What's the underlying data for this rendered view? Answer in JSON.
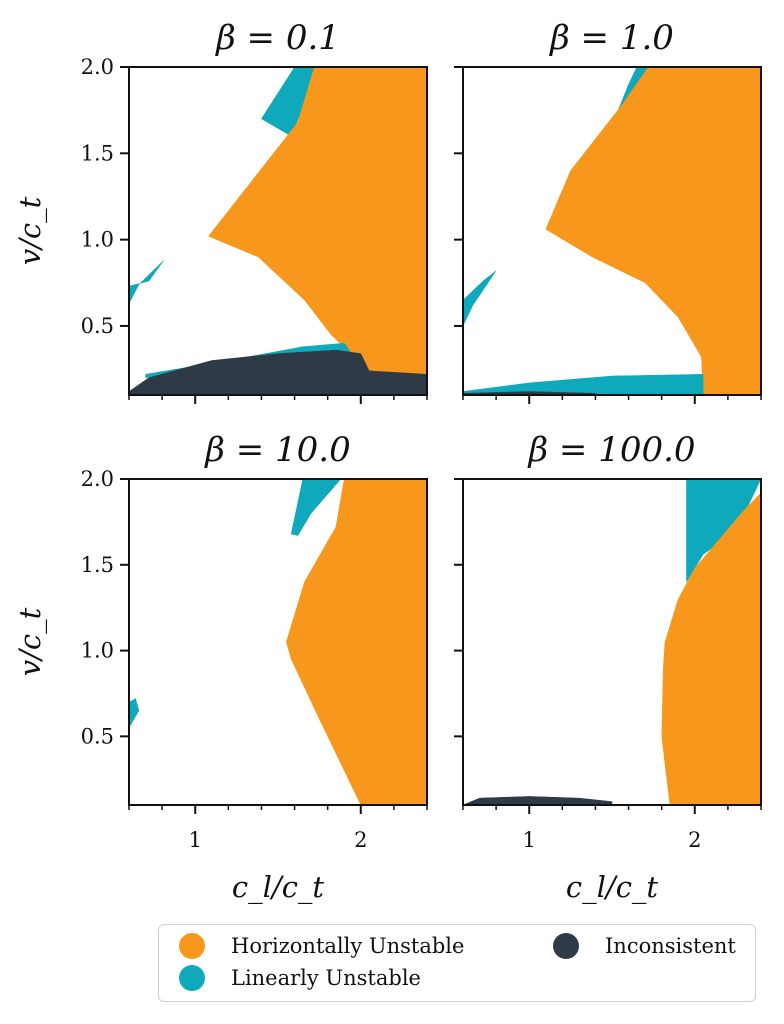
{
  "colors": {
    "horizontally_unstable": "#F7981D",
    "linearly_unstable": "#0EA9BA",
    "inconsistent": "#2E3B46",
    "stable": "#FFFFFF"
  },
  "chart_data": {
    "type": "heatmap",
    "layout": "2x2 grid of region maps",
    "xlabel": "c_l/c_t",
    "ylabel": "v/c_t",
    "xlim": [
      0.6,
      2.4
    ],
    "ylim": [
      0.1,
      2.0
    ],
    "x_ticks": [
      1,
      2
    ],
    "x_tick_labels": [
      "1",
      "2"
    ],
    "y_ticks": [
      0.5,
      1.0,
      1.5,
      2.0
    ],
    "y_tick_labels": [
      "0.5",
      "1.0",
      "1.5",
      "2.0"
    ],
    "legend": {
      "placement": "bottom",
      "entries": [
        {
          "key": "horizontally_unstable",
          "label": "Horizontally Unstable"
        },
        {
          "key": "linearly_unstable",
          "label": "Linearly Unstable"
        },
        {
          "key": "inconsistent",
          "label": "Inconsistent"
        }
      ]
    },
    "panels": [
      {
        "title": "β = 0.1",
        "regions": [
          {
            "category": "linearly_unstable",
            "points": [
              [
                1.4,
                1.7
              ],
              [
                1.6,
                2.0
              ],
              [
                1.75,
                2.0
              ],
              [
                1.58,
                1.6
              ]
            ]
          },
          {
            "category": "horizontally_unstable",
            "points": [
              [
                1.08,
                1.02
              ],
              [
                1.62,
                1.68
              ],
              [
                1.72,
                2.0
              ],
              [
                2.4,
                2.0
              ],
              [
                2.4,
                0.21
              ],
              [
                2.1,
                0.24
              ],
              [
                1.98,
                0.24
              ],
              [
                1.95,
                0.33
              ],
              [
                1.82,
                0.45
              ],
              [
                1.66,
                0.65
              ],
              [
                1.38,
                0.9
              ]
            ]
          },
          {
            "category": "linearly_unstable",
            "points": [
              [
                0.6,
                0.63
              ],
              [
                0.66,
                0.74
              ],
              [
                0.81,
                0.88
              ],
              [
                0.72,
                0.76
              ],
              [
                0.6,
                0.73
              ]
            ]
          },
          {
            "category": "linearly_unstable",
            "points": [
              [
                0.7,
                0.22
              ],
              [
                1.2,
                0.3
              ],
              [
                1.65,
                0.38
              ],
              [
                1.9,
                0.4
              ],
              [
                1.96,
                0.32
              ],
              [
                1.55,
                0.32
              ],
              [
                1.1,
                0.24
              ],
              [
                0.7,
                0.2
              ]
            ]
          },
          {
            "category": "inconsistent",
            "points": [
              [
                0.6,
                0.12
              ],
              [
                0.72,
                0.2
              ],
              [
                1.1,
                0.3
              ],
              [
                1.5,
                0.34
              ],
              [
                1.85,
                0.36
              ],
              [
                2.0,
                0.34
              ],
              [
                2.05,
                0.24
              ],
              [
                2.4,
                0.22
              ],
              [
                2.4,
                0.1
              ],
              [
                0.6,
                0.1
              ]
            ]
          }
        ]
      },
      {
        "title": "β = 1.0",
        "regions": [
          {
            "category": "linearly_unstable",
            "points": [
              [
                1.37,
                1.35
              ],
              [
                1.6,
                1.9
              ],
              [
                1.65,
                2.0
              ],
              [
                1.78,
                2.0
              ],
              [
                1.62,
                1.65
              ],
              [
                1.5,
                1.4
              ]
            ]
          },
          {
            "category": "horizontally_unstable",
            "points": [
              [
                1.1,
                1.06
              ],
              [
                1.25,
                1.4
              ],
              [
                1.56,
                1.78
              ],
              [
                1.72,
                2.0
              ],
              [
                2.4,
                2.0
              ],
              [
                2.4,
                0.1
              ],
              [
                2.05,
                0.1
              ],
              [
                2.04,
                0.32
              ],
              [
                1.9,
                0.55
              ],
              [
                1.7,
                0.75
              ],
              [
                1.38,
                0.9
              ]
            ]
          },
          {
            "category": "linearly_unstable",
            "points": [
              [
                0.6,
                0.5
              ],
              [
                0.66,
                0.62
              ],
              [
                0.8,
                0.82
              ],
              [
                0.72,
                0.76
              ],
              [
                0.6,
                0.65
              ]
            ]
          },
          {
            "category": "linearly_unstable",
            "points": [
              [
                0.6,
                0.12
              ],
              [
                1.0,
                0.17
              ],
              [
                1.5,
                0.21
              ],
              [
                2.05,
                0.22
              ],
              [
                2.05,
                0.1
              ],
              [
                0.6,
                0.1
              ]
            ]
          },
          {
            "category": "inconsistent",
            "points": [
              [
                0.6,
                0.11
              ],
              [
                1.0,
                0.12
              ],
              [
                1.4,
                0.11
              ],
              [
                1.4,
                0.1
              ],
              [
                0.6,
                0.1
              ]
            ]
          }
        ]
      },
      {
        "title": "β = 10.0",
        "regions": [
          {
            "category": "linearly_unstable",
            "points": [
              [
                1.58,
                1.68
              ],
              [
                1.65,
                2.0
              ],
              [
                1.88,
                2.0
              ],
              [
                1.7,
                1.8
              ],
              [
                1.62,
                1.67
              ]
            ]
          },
          {
            "category": "horizontally_unstable",
            "points": [
              [
                1.55,
                1.05
              ],
              [
                1.66,
                1.4
              ],
              [
                1.85,
                1.72
              ],
              [
                1.9,
                2.0
              ],
              [
                2.4,
                2.0
              ],
              [
                2.4,
                0.1
              ],
              [
                2.0,
                0.1
              ],
              [
                1.75,
                0.6
              ],
              [
                1.58,
                0.95
              ]
            ]
          },
          {
            "category": "linearly_unstable",
            "points": [
              [
                0.6,
                0.55
              ],
              [
                0.66,
                0.65
              ],
              [
                0.64,
                0.72
              ],
              [
                0.6,
                0.7
              ]
            ]
          }
        ]
      },
      {
        "title": "β = 100.0",
        "regions": [
          {
            "category": "linearly_unstable",
            "points": [
              [
                1.95,
                1.4
              ],
              [
                1.95,
                2.0
              ],
              [
                2.4,
                2.0
              ],
              [
                2.25,
                1.7
              ],
              [
                2.05,
                1.56
              ]
            ]
          },
          {
            "category": "horizontally_unstable",
            "points": [
              [
                1.82,
                1.05
              ],
              [
                1.9,
                1.3
              ],
              [
                2.0,
                1.48
              ],
              [
                2.3,
                1.82
              ],
              [
                2.4,
                1.92
              ],
              [
                2.4,
                0.1
              ],
              [
                1.85,
                0.1
              ],
              [
                1.8,
                0.5
              ],
              [
                1.81,
                0.9
              ]
            ]
          },
          {
            "category": "inconsistent",
            "points": [
              [
                0.6,
                0.1
              ],
              [
                0.7,
                0.14
              ],
              [
                1.0,
                0.15
              ],
              [
                1.3,
                0.14
              ],
              [
                1.5,
                0.12
              ],
              [
                1.5,
                0.1
              ]
            ]
          }
        ]
      }
    ]
  }
}
